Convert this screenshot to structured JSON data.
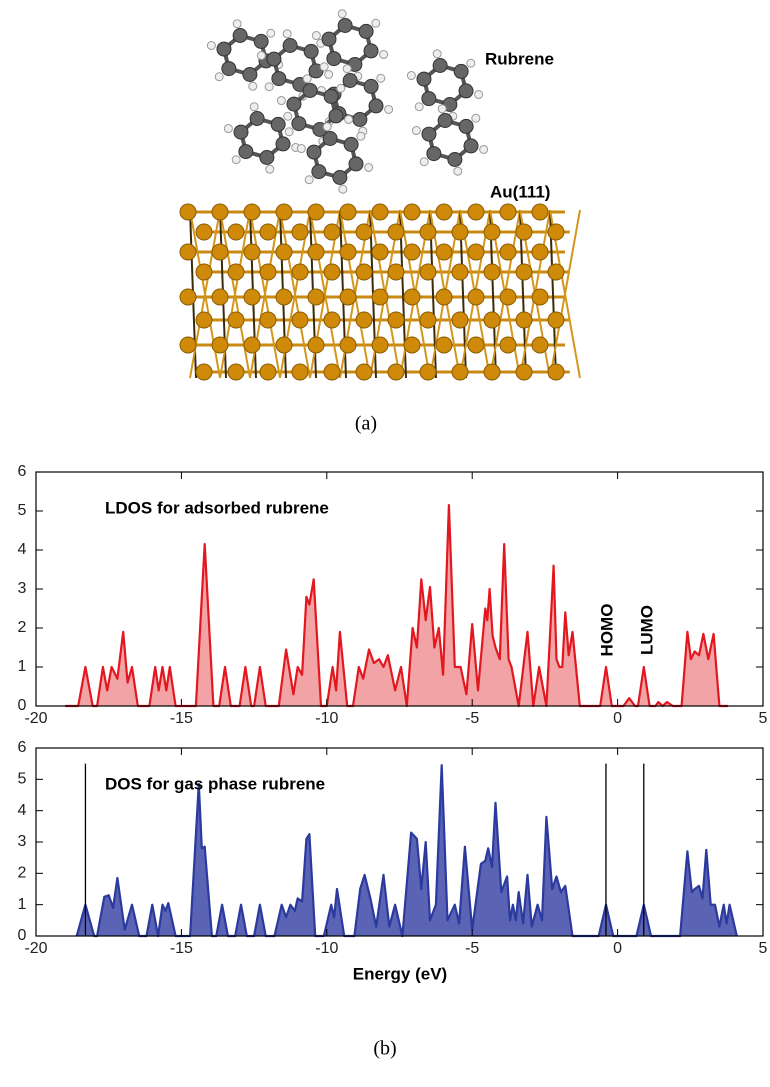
{
  "figure": {
    "molecule_label": "Rubrene",
    "surface_label": "Au(111)",
    "panel_a": "(a)",
    "panel_b": "(b)"
  },
  "chart_data": [
    {
      "type": "line",
      "title": "LDOS for adsorbed rubrene",
      "annotations": [
        "HOMO",
        "LUMO"
      ],
      "color": "#e3171f",
      "fill_color": "#f2a3a5",
      "xlim": [
        -20,
        5
      ],
      "xticks": [
        -20,
        -15,
        -10,
        -5,
        0,
        5
      ],
      "ylim": [
        0,
        6
      ],
      "yticks": [
        0,
        1,
        2,
        3,
        4,
        5,
        6
      ],
      "x": [
        -19,
        -18.55,
        -18.3,
        -18.05,
        -17.9,
        -17.7,
        -17.55,
        -17.4,
        -17.2,
        -17.0,
        -16.85,
        -16.7,
        -16.5,
        -16.1,
        -15.9,
        -15.78,
        -15.65,
        -15.52,
        -15.4,
        -15.2,
        -14.5,
        -14.2,
        -13.9,
        -13.7,
        -13.5,
        -13.3,
        -13.0,
        -12.8,
        -12.6,
        -12.5,
        -12.3,
        -12.1,
        -11.65,
        -11.4,
        -11.15,
        -11.0,
        -10.85,
        -10.7,
        -10.6,
        -10.45,
        -10.2,
        -10.0,
        -9.8,
        -9.68,
        -9.55,
        -9.3,
        -9.1,
        -8.9,
        -8.75,
        -8.55,
        -8.38,
        -8.2,
        -8.05,
        -7.9,
        -7.65,
        -7.45,
        -7.25,
        -7.05,
        -6.9,
        -6.75,
        -6.6,
        -6.45,
        -6.3,
        -6.15,
        -6.0,
        -5.8,
        -5.6,
        -5.4,
        -5.2,
        -5.0,
        -4.8,
        -4.55,
        -4.48,
        -4.4,
        -4.3,
        -4.2,
        -4.05,
        -3.9,
        -3.75,
        -3.65,
        -3.4,
        -3.1,
        -2.9,
        -2.7,
        -2.45,
        -2.2,
        -2.1,
        -2.0,
        -1.9,
        -1.8,
        -1.68,
        -1.55,
        -1.3,
        -0.6,
        -0.4,
        -0.2,
        0.2,
        0.4,
        0.6,
        0.7,
        0.9,
        1.1,
        1.3,
        1.4,
        1.55,
        1.7,
        1.9,
        2.2,
        2.4,
        2.52,
        2.65,
        2.8,
        2.95,
        3.12,
        3.3,
        3.5,
        3.8
      ],
      "values": [
        0,
        0,
        1.0,
        0,
        0,
        1.0,
        0.4,
        1.0,
        0.7,
        1.9,
        0.6,
        1.0,
        0,
        0,
        1.0,
        0.4,
        1.0,
        0.4,
        1.0,
        0,
        0,
        4.15,
        0,
        0,
        1.0,
        0,
        0,
        1.0,
        0,
        0,
        1.0,
        0,
        0,
        1.45,
        0.3,
        1.0,
        0.8,
        2.8,
        2.6,
        3.25,
        0,
        0,
        1.0,
        0.4,
        1.9,
        0,
        0,
        1.0,
        0.7,
        1.45,
        1.1,
        1.2,
        1.0,
        1.3,
        0.4,
        1.0,
        0,
        2.0,
        1.5,
        3.25,
        2.2,
        3.05,
        1.5,
        2.0,
        0.8,
        5.15,
        1.0,
        1.0,
        0.3,
        2.1,
        0.4,
        2.5,
        2.2,
        3.0,
        1.8,
        1.5,
        1.2,
        4.15,
        1.2,
        1.0,
        0,
        1.9,
        0,
        1.0,
        0,
        3.6,
        1.2,
        1.0,
        1.0,
        2.4,
        1.3,
        1.9,
        0,
        0,
        1.0,
        0,
        0,
        0.2,
        0,
        0,
        1.0,
        0,
        0,
        0.1,
        0,
        0.1,
        0,
        0,
        1.9,
        1.2,
        1.4,
        1.3,
        1.85,
        1.2,
        1.85,
        0,
        0
      ]
    },
    {
      "type": "line",
      "title": "DOS for gas phase rubrene",
      "x_label": "Energy (eV)",
      "color": "#2a3a9e",
      "fill_color": "#5b63b4",
      "xlim": [
        -20,
        5
      ],
      "xticks": [
        -20,
        -15,
        -10,
        -5,
        0,
        5
      ],
      "ylim": [
        0,
        6
      ],
      "yticks": [
        0,
        1,
        2,
        3,
        4,
        5,
        6
      ],
      "vlines": {
        "x": [
          -18.3,
          -0.4,
          0.9
        ],
        "top": [
          5.5,
          5.5,
          5.5
        ]
      },
      "x": [
        -18.6,
        -18.3,
        -18.0,
        -17.9,
        -17.65,
        -17.5,
        -17.35,
        -17.2,
        -16.95,
        -16.7,
        -16.45,
        -16.2,
        -16.0,
        -15.8,
        -15.65,
        -15.55,
        -15.45,
        -15.2,
        -14.7,
        -14.4,
        -14.3,
        -14.2,
        -13.95,
        -13.8,
        -13.6,
        -13.4,
        -13.15,
        -12.95,
        -12.75,
        -12.5,
        -12.3,
        -12.1,
        -11.8,
        -11.55,
        -11.4,
        -11.25,
        -11.1,
        -11.0,
        -10.85,
        -10.7,
        -10.6,
        -10.4,
        -10.1,
        -9.85,
        -9.75,
        -9.65,
        -9.4,
        -9.05,
        -8.85,
        -8.7,
        -8.5,
        -8.3,
        -8.05,
        -7.85,
        -7.65,
        -7.4,
        -7.1,
        -6.9,
        -6.75,
        -6.6,
        -6.45,
        -6.25,
        -6.05,
        -5.85,
        -5.6,
        -5.45,
        -5.25,
        -5.0,
        -4.7,
        -4.55,
        -4.45,
        -4.32,
        -4.2,
        -4.0,
        -3.8,
        -3.7,
        -3.6,
        -3.5,
        -3.4,
        -3.25,
        -3.1,
        -2.95,
        -2.75,
        -2.6,
        -2.45,
        -2.25,
        -2.1,
        -1.95,
        -1.8,
        -1.55,
        -0.65,
        -0.4,
        -0.15,
        0.65,
        0.9,
        1.15,
        2.15,
        2.4,
        2.55,
        2.65,
        2.8,
        2.92,
        3.05,
        3.2,
        3.35,
        3.5,
        3.65,
        3.75,
        3.85,
        4.1
      ],
      "values": [
        0,
        1.0,
        0,
        0,
        1.25,
        1.3,
        0.9,
        1.85,
        0.2,
        1.0,
        0,
        0,
        1.0,
        0,
        1.0,
        0.8,
        1.05,
        0,
        0,
        4.85,
        2.8,
        2.85,
        0,
        0,
        1.0,
        0,
        0,
        1.0,
        0,
        0,
        1.0,
        0,
        0,
        1.0,
        0.6,
        1.0,
        0.8,
        1.2,
        1.1,
        3.1,
        3.25,
        0,
        0,
        1.0,
        0.6,
        1.5,
        0,
        0,
        1.5,
        1.95,
        1.2,
        0.3,
        1.95,
        0.3,
        1.0,
        0,
        3.3,
        3.1,
        1.5,
        3.0,
        0.5,
        1.0,
        5.45,
        0.5,
        1.0,
        0.4,
        2.85,
        0.2,
        2.3,
        2.4,
        2.8,
        2.2,
        4.25,
        1.4,
        1.9,
        0.5,
        1.0,
        0.5,
        1.4,
        0.4,
        1.95,
        0.3,
        1.0,
        0.5,
        3.8,
        1.5,
        1.9,
        1.4,
        1.6,
        0,
        0,
        1.0,
        0,
        0,
        1.0,
        0,
        0,
        2.7,
        1.4,
        1.5,
        1.6,
        1.2,
        2.75,
        1.0,
        1.0,
        0.3,
        1.0,
        0.4,
        1.0,
        0
      ]
    }
  ]
}
